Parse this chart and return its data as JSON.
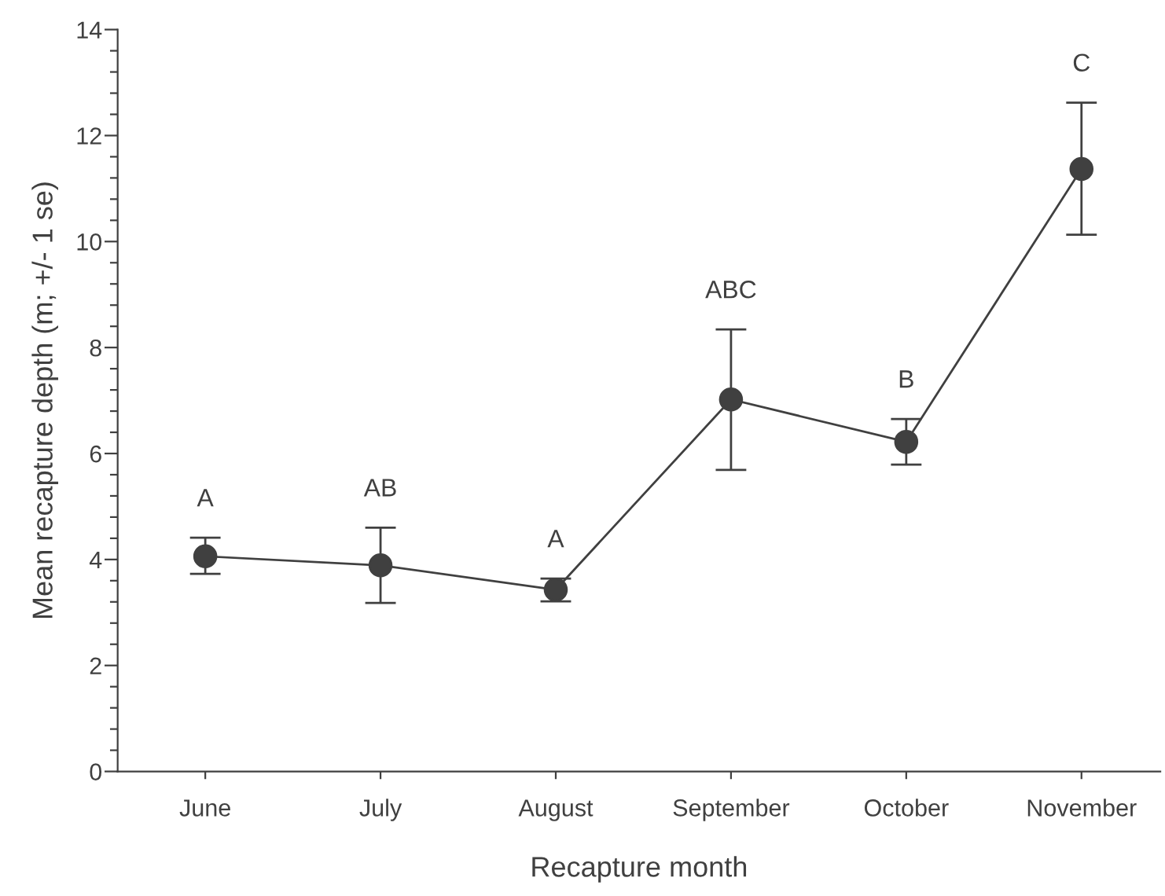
{
  "chart_data": {
    "type": "line",
    "xlabel": "Recapture month",
    "ylabel": "Mean recapture depth (m; +/- 1 se)",
    "categories": [
      "June",
      "July",
      "August",
      "September",
      "October",
      "November"
    ],
    "series": [
      {
        "color": "#404040",
        "values": [
          4.06,
          3.89,
          3.43,
          7.02,
          6.22,
          11.37
        ],
        "errors": [
          [
            3.73,
            4.41
          ],
          [
            3.18,
            4.6
          ],
          [
            3.21,
            3.64
          ],
          [
            5.69,
            8.34
          ],
          [
            5.79,
            6.65
          ],
          [
            10.13,
            12.62
          ]
        ]
      }
    ],
    "marker": "circle",
    "line_style": "solid",
    "grid": false,
    "legend": false,
    "ylim": [
      0,
      14
    ],
    "yticks": [
      0,
      {
        "value": 0.4,
        "label": null
      },
      {
        "value": 0.8,
        "label": null
      },
      {
        "value": 1.2,
        "label": null
      },
      {
        "value": 1.6,
        "label": null
      },
      2,
      {
        "value": 2.4,
        "label": null
      },
      {
        "value": 2.8,
        "label": null
      },
      {
        "value": 3.2,
        "label": null
      },
      {
        "value": 3.6,
        "label": null
      },
      4,
      {
        "value": 4.4,
        "label": null
      },
      {
        "value": 4.8,
        "label": null
      },
      {
        "value": 5.2,
        "label": null
      },
      {
        "value": 5.6,
        "label": null
      },
      6,
      {
        "value": 6.4,
        "label": null
      },
      {
        "value": 6.8,
        "label": null
      },
      {
        "value": 7.2,
        "label": null
      },
      {
        "value": 7.6,
        "label": null
      },
      8,
      {
        "value": 8.4,
        "label": null
      },
      {
        "value": 8.8,
        "label": null
      },
      {
        "value": 9.2,
        "label": null
      },
      {
        "value": 9.6,
        "label": null
      },
      10,
      {
        "value": 10.4,
        "label": null
      },
      {
        "value": 10.8,
        "label": null
      },
      {
        "value": 11.2,
        "label": null
      },
      {
        "value": 11.6,
        "label": null
      },
      12,
      {
        "value": 12.4,
        "label": null
      },
      {
        "value": 12.8,
        "label": null
      },
      {
        "value": 13.2,
        "label": null
      },
      {
        "value": 13.6,
        "label": null
      },
      14
    ],
    "annotations": [
      "A",
      "AB",
      "A",
      "ABC",
      "B",
      "C"
    ]
  }
}
